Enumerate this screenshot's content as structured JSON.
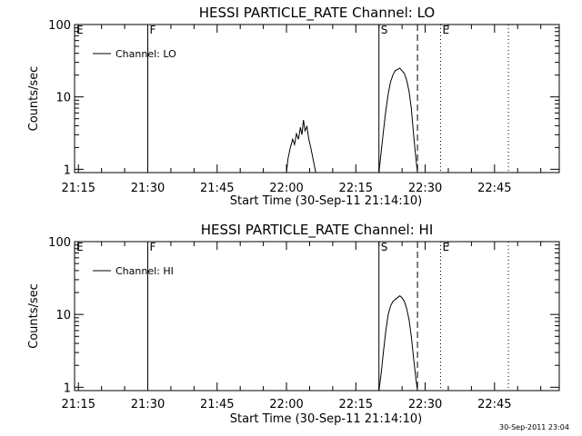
{
  "footer": {
    "timestamp": "30-Sep-2011 23:04"
  },
  "chart_data": [
    {
      "type": "line",
      "title": "HESSI PARTICLE_RATE Channel: LO",
      "xlabel": "Start Time (30-Sep-11 21:14:10)",
      "ylabel": "Counts/sec",
      "y_scale": "log",
      "xlim": [
        "21:14:10",
        "22:59:00"
      ],
      "ylim": [
        0.9,
        100
      ],
      "xticks": [
        "21:15",
        "21:30",
        "21:45",
        "22:00",
        "22:15",
        "22:30",
        "22:45"
      ],
      "yticks": [
        {
          "value": 1,
          "label": "1"
        },
        {
          "value": 10,
          "label": "10"
        },
        {
          "value": 100,
          "label": "100"
        }
      ],
      "legend": {
        "position": "top-left",
        "entries": [
          "Channel: LO"
        ]
      },
      "markers": [
        {
          "label": "E",
          "time": "21:14:10",
          "style": "none"
        },
        {
          "label": "F",
          "time": "21:30:00",
          "style": "solid"
        },
        {
          "label": "S",
          "time": "22:20:00",
          "style": "solid"
        },
        {
          "label": "",
          "time": "22:28:20",
          "style": "dashed"
        },
        {
          "label": "E",
          "time": "22:33:20",
          "style": "dotted"
        },
        {
          "label": "",
          "time": "22:48:00",
          "style": "dotted"
        }
      ],
      "series": [
        {
          "name": "Channel: LO",
          "segments": [
            [
              [
                "22:00:00",
                0.9
              ],
              [
                "22:00:20",
                1.4
              ],
              [
                "22:00:50",
                2.0
              ],
              [
                "22:01:20",
                2.6
              ],
              [
                "22:01:45",
                2.2
              ],
              [
                "22:02:10",
                3.1
              ],
              [
                "22:02:35",
                2.6
              ],
              [
                "22:03:00",
                3.8
              ],
              [
                "22:03:20",
                3.0
              ],
              [
                "22:03:40",
                4.8
              ],
              [
                "22:04:00",
                3.4
              ],
              [
                "22:04:25",
                3.9
              ],
              [
                "22:04:50",
                2.6
              ],
              [
                "22:05:20",
                1.9
              ],
              [
                "22:05:50",
                1.3
              ],
              [
                "22:06:20",
                0.9
              ]
            ],
            [
              [
                "22:20:00",
                0.9
              ],
              [
                "22:20:30",
                1.8
              ],
              [
                "22:21:00",
                3.5
              ],
              [
                "22:21:30",
                6.5
              ],
              [
                "22:22:00",
                11
              ],
              [
                "22:22:30",
                16
              ],
              [
                "22:23:00",
                20
              ],
              [
                "22:23:30",
                23
              ],
              [
                "22:24:00",
                24
              ],
              [
                "22:24:30",
                25
              ],
              [
                "22:25:00",
                23
              ],
              [
                "22:25:30",
                21
              ],
              [
                "22:26:00",
                17
              ],
              [
                "22:26:30",
                12
              ],
              [
                "22:27:00",
                7
              ],
              [
                "22:27:30",
                3
              ],
              [
                "22:28:00",
                1.4
              ],
              [
                "22:28:20",
                0.9
              ]
            ]
          ]
        }
      ]
    },
    {
      "type": "line",
      "title": "HESSI PARTICLE_RATE Channel: HI",
      "xlabel": "Start Time (30-Sep-11 21:14:10)",
      "ylabel": "Counts/sec",
      "y_scale": "log",
      "xlim": [
        "21:14:10",
        "22:59:00"
      ],
      "ylim": [
        0.9,
        100
      ],
      "xticks": [
        "21:15",
        "21:30",
        "21:45",
        "22:00",
        "22:15",
        "22:30",
        "22:45"
      ],
      "yticks": [
        {
          "value": 1,
          "label": "1"
        },
        {
          "value": 10,
          "label": "10"
        },
        {
          "value": 100,
          "label": "100"
        }
      ],
      "legend": {
        "position": "top-left",
        "entries": [
          "Channel: HI"
        ]
      },
      "markers": [
        {
          "label": "E",
          "time": "21:14:10",
          "style": "none"
        },
        {
          "label": "F",
          "time": "21:30:00",
          "style": "solid"
        },
        {
          "label": "S",
          "time": "22:20:00",
          "style": "solid"
        },
        {
          "label": "",
          "time": "22:28:20",
          "style": "dashed"
        },
        {
          "label": "E",
          "time": "22:33:20",
          "style": "dotted"
        },
        {
          "label": "",
          "time": "22:48:00",
          "style": "dotted"
        }
      ],
      "series": [
        {
          "name": "Channel: HI",
          "segments": [
            [
              [
                "22:20:00",
                0.9
              ],
              [
                "22:20:30",
                1.6
              ],
              [
                "22:21:00",
                3.2
              ],
              [
                "22:21:30",
                6.0
              ],
              [
                "22:22:00",
                10
              ],
              [
                "22:22:30",
                13
              ],
              [
                "22:23:00",
                15
              ],
              [
                "22:23:30",
                16
              ],
              [
                "22:24:00",
                17
              ],
              [
                "22:24:30",
                18
              ],
              [
                "22:25:00",
                17
              ],
              [
                "22:25:30",
                15
              ],
              [
                "22:26:00",
                12
              ],
              [
                "22:26:30",
                8.5
              ],
              [
                "22:27:00",
                5
              ],
              [
                "22:27:30",
                2.5
              ],
              [
                "22:28:00",
                1.3
              ],
              [
                "22:28:20",
                0.9
              ]
            ]
          ]
        }
      ]
    }
  ]
}
